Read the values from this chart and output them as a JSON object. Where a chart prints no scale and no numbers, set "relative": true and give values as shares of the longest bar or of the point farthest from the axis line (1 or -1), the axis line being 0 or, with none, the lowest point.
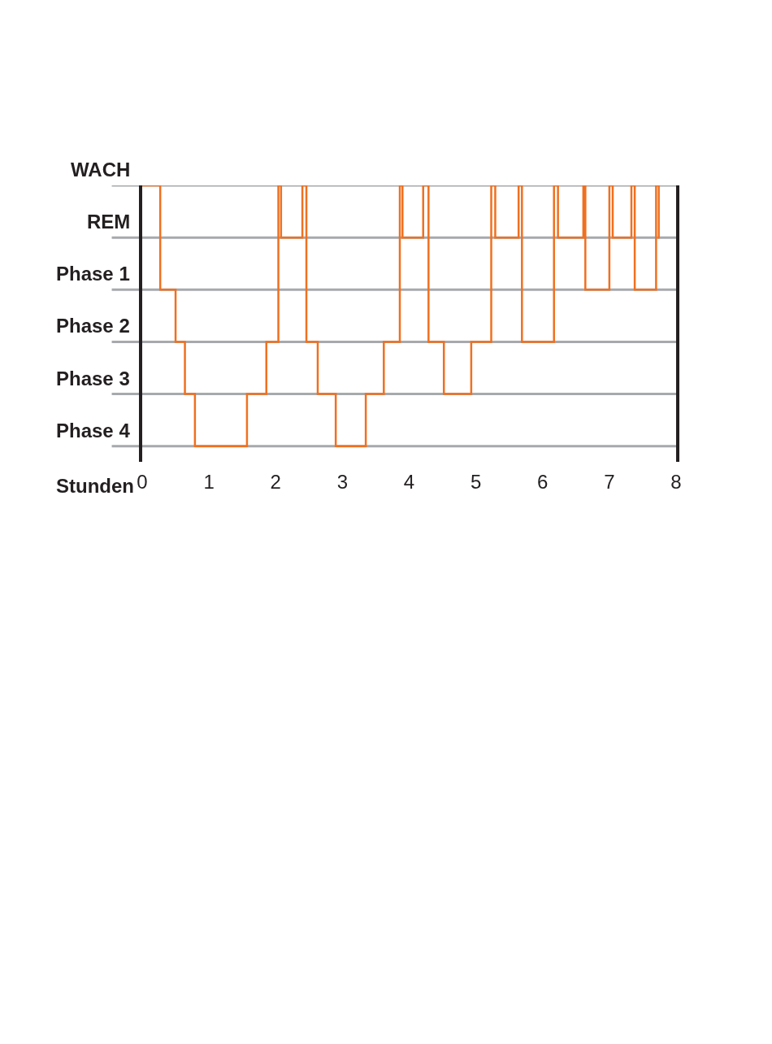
{
  "chart_data": {
    "type": "step",
    "xlabel": "Stunden",
    "relative": true,
    "x": [
      0,
      0.27,
      0.5,
      0.64,
      0.79,
      1.57,
      1.86,
      2.04,
      2.08,
      2.4,
      2.46,
      2.63,
      2.9,
      3.35,
      3.62,
      3.86,
      3.9,
      4.21,
      4.29,
      4.52,
      4.93,
      5.23,
      5.29,
      5.64,
      5.69,
      6.17,
      6.23,
      6.61,
      6.64,
      7.0,
      7.05,
      7.33,
      7.38,
      7.7,
      7.74,
      7.75
    ],
    "series": [
      {
        "color": "#f07020",
        "values": [
          1,
          0.6,
          0.4,
          0.2,
          0,
          0.2,
          0.4,
          1,
          0.8,
          1,
          0.4,
          0.2,
          0,
          0.2,
          0.4,
          1,
          0.8,
          1,
          0.4,
          0.2,
          0.4,
          1,
          0.8,
          1,
          0.4,
          1,
          0.8,
          1,
          0.6,
          1,
          0.8,
          1,
          0.6,
          1,
          0.8,
          0.8
        ]
      }
    ],
    "xlim": [
      0,
      8
    ],
    "xticks": [
      0,
      1,
      2,
      3,
      4,
      5,
      6,
      7,
      8
    ],
    "ref_lines": [
      {
        "axis": "y",
        "value": 1,
        "label": "WACH",
        "color": "#a7a9ac"
      },
      {
        "axis": "y",
        "value": 0.8,
        "label": "REM",
        "color": "#a7a9ac"
      },
      {
        "axis": "y",
        "value": 0.6,
        "label": "Phase 1",
        "color": "#a7a9ac"
      },
      {
        "axis": "y",
        "value": 0.4,
        "label": "Phase 2",
        "color": "#a7a9ac"
      },
      {
        "axis": "y",
        "value": 0.2,
        "label": "Phase 3",
        "color": "#a7a9ac"
      },
      {
        "axis": "y",
        "value": 0,
        "label": "Phase 4",
        "color": "#a7a9ac"
      }
    ],
    "marker": "none",
    "line_style": "solid"
  }
}
